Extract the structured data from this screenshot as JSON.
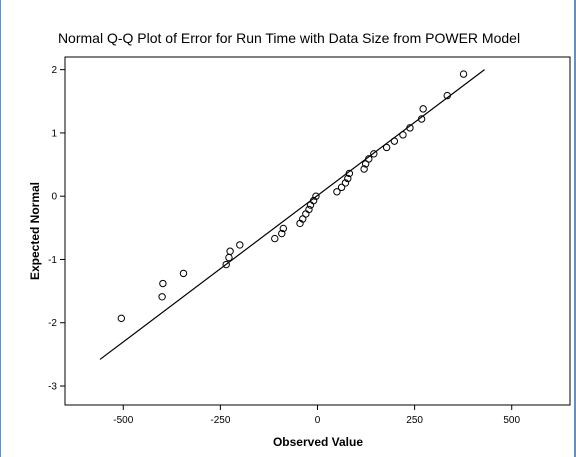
{
  "chart_data": {
    "type": "scatter",
    "title": "Normal Q-Q Plot of Error for Run Time with Data Size from POWER Model",
    "xlabel": "Observed Value",
    "ylabel": "Expected Normal",
    "xlim": [
      -650,
      650
    ],
    "ylim": [
      -3.3,
      2.2
    ],
    "x_ticks": [
      -500,
      -250,
      0,
      250,
      500
    ],
    "x_tick_labels": [
      "-500",
      "-250",
      "0",
      "250",
      "500"
    ],
    "y_ticks": [
      -3,
      -2,
      -1,
      0,
      1,
      2
    ],
    "y_tick_labels": [
      "-3",
      "-2",
      "-1",
      "0",
      "1",
      "2"
    ],
    "grid": false,
    "legend": "none",
    "series": [
      {
        "type": "scatter",
        "x": [
          -505,
          -400,
          -398,
          -345,
          -235,
          -228,
          -225,
          -200,
          -110,
          -92,
          -88,
          -45,
          -38,
          -30,
          -22,
          -18,
          -10,
          -4,
          50,
          62,
          72,
          78,
          82,
          120,
          124,
          132,
          145,
          178,
          198,
          220,
          238,
          268,
          272,
          334,
          376
        ],
        "y": [
          -1.93,
          -1.59,
          -1.38,
          -1.22,
          -1.08,
          -0.97,
          -0.87,
          -0.77,
          -0.67,
          -0.59,
          -0.51,
          -0.43,
          -0.36,
          -0.28,
          -0.21,
          -0.14,
          -0.07,
          0.0,
          0.07,
          0.14,
          0.21,
          0.28,
          0.36,
          0.43,
          0.51,
          0.59,
          0.67,
          0.77,
          0.87,
          0.97,
          1.08,
          1.22,
          1.38,
          1.59,
          1.93
        ]
      },
      {
        "type": "line",
        "x": [
          -560,
          430
        ],
        "y": [
          -2.58,
          2.0
        ]
      }
    ],
    "colors": {
      "background": "#ffffff",
      "frame": "#000000",
      "points": "#000000",
      "line": "#000000",
      "window_border": "#6a8fb8"
    }
  }
}
